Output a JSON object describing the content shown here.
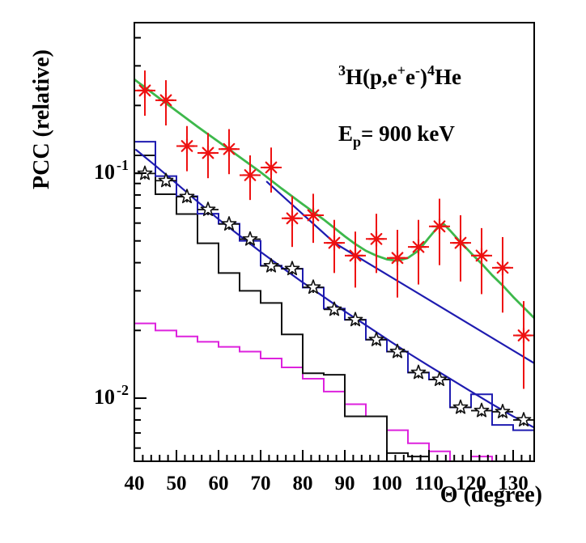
{
  "figure": {
    "y_axis_title": "PCC (relative)",
    "x_axis_title": "Θ (degree)",
    "y_tick_labels": [
      {
        "base": "10",
        "exp": "-1",
        "value": 0.1
      },
      {
        "base": "10",
        "exp": "-2",
        "value": 0.01
      }
    ],
    "x_tick_labels": [
      "40",
      "50",
      "60",
      "70",
      "80",
      "90",
      "100",
      "110",
      "120",
      "130"
    ],
    "reaction_parts": [
      {
        "t": "3",
        "style": "sup"
      },
      {
        "t": "H(p,e"
      },
      {
        "t": "+",
        "style": "sup"
      },
      {
        "t": "e"
      },
      {
        "t": "-",
        "style": "sup"
      },
      {
        "t": ")"
      },
      {
        "t": "4",
        "style": "sup"
      },
      {
        "t": "He"
      }
    ],
    "energy_parts": [
      {
        "t": "E"
      },
      {
        "t": "p",
        "style": "sub"
      },
      {
        "t": "= 900 keV"
      }
    ]
  },
  "chart_data": {
    "type": "line",
    "title": "3H(p,e+e-)4He angular correlation",
    "annotations": [
      "3H(p,e+e-)4He",
      "Ep = 900 keV"
    ],
    "xlabel": "Θ (degree)",
    "ylabel": "PCC (relative)",
    "x_axis": {
      "range": [
        40,
        135
      ],
      "major_ticks": [
        40,
        50,
        60,
        70,
        80,
        90,
        100,
        110,
        120,
        130
      ],
      "minor_tick_step": 2
    },
    "y_axis": {
      "scale": "log",
      "range": [
        0.0052,
        0.467
      ],
      "major_ticks": [
        0.1,
        0.01
      ],
      "minor_ticks": [
        0.4,
        0.3,
        0.2,
        0.09,
        0.08,
        0.07,
        0.06,
        0.05,
        0.04,
        0.03,
        0.02,
        0.009,
        0.008,
        0.007,
        0.006
      ]
    },
    "grid": false,
    "legend": "none",
    "colors": {
      "data": "#ee1111",
      "fit": "#3db84b",
      "theory": "#1e1bb0",
      "histogram_blue": "#1e1bb0",
      "histogram_black": "#111111",
      "histogram_magenta": "#dd22dd"
    },
    "series": [
      {
        "name": "experimental-data",
        "type": "scatter",
        "marker": "asterisk",
        "color": "#ee1111",
        "xerr_deg": 2.5,
        "x": [
          42.5,
          47.5,
          52.5,
          57.5,
          62.5,
          67.5,
          72.5,
          77.5,
          82.5,
          87.5,
          92.5,
          97.5,
          102.5,
          107.5,
          112.5,
          117.5,
          122.5,
          127.5,
          132.5
        ],
        "y": [
          0.233,
          0.211,
          0.132,
          0.123,
          0.128,
          0.098,
          0.106,
          0.063,
          0.065,
          0.049,
          0.043,
          0.051,
          0.042,
          0.047,
          0.058,
          0.049,
          0.043,
          0.038,
          0.019
        ],
        "yerr": [
          0.053,
          0.048,
          0.03,
          0.028,
          0.029,
          0.022,
          0.024,
          0.016,
          0.016,
          0.013,
          0.012,
          0.015,
          0.014,
          0.015,
          0.019,
          0.016,
          0.014,
          0.014,
          0.008
        ]
      },
      {
        "name": "fit-curve-with-bump",
        "type": "line",
        "color": "#3db84b",
        "points": [
          [
            40,
            0.261
          ],
          [
            45,
            0.222
          ],
          [
            50,
            0.189
          ],
          [
            55,
            0.161
          ],
          [
            60,
            0.138
          ],
          [
            65,
            0.118
          ],
          [
            70,
            0.101
          ],
          [
            75,
            0.0854
          ],
          [
            80,
            0.0728
          ],
          [
            85,
            0.0622
          ],
          [
            87.5,
            0.0571
          ],
          [
            90,
            0.0524
          ],
          [
            92.5,
            0.0484
          ],
          [
            95,
            0.0452
          ],
          [
            97.5,
            0.043
          ],
          [
            100,
            0.0414
          ],
          [
            102.5,
            0.0408
          ],
          [
            105,
            0.042
          ],
          [
            107.5,
            0.0453
          ],
          [
            110,
            0.0517
          ],
          [
            112.5,
            0.0588
          ],
          [
            113.5,
            0.0594
          ],
          [
            115,
            0.0556
          ],
          [
            117.5,
            0.0494
          ],
          [
            120,
            0.0441
          ],
          [
            122.5,
            0.0396
          ],
          [
            125,
            0.0352
          ],
          [
            127.5,
            0.0317
          ],
          [
            130,
            0.0282
          ],
          [
            132.5,
            0.0253
          ],
          [
            135,
            0.0227
          ]
        ]
      },
      {
        "name": "e1-direct-line",
        "type": "line",
        "color": "#1e1bb0",
        "points": [
          [
            71.5,
            0.0915
          ],
          [
            87.6,
            0.0489
          ],
          [
            135,
            0.0143
          ]
        ]
      },
      {
        "name": "e0-fit-line",
        "type": "line",
        "color": "#1e1bb0",
        "points": [
          [
            40.4,
            0.127
          ],
          [
            45,
            0.108
          ],
          [
            50,
            0.09
          ],
          [
            55,
            0.0748
          ],
          [
            60,
            0.0624
          ],
          [
            65,
            0.0528
          ],
          [
            70,
            0.0447
          ],
          [
            75,
            0.0382
          ],
          [
            80,
            0.0327
          ],
          [
            85,
            0.0282
          ],
          [
            90,
            0.0243
          ],
          [
            95,
            0.0211
          ],
          [
            100,
            0.0183
          ],
          [
            105,
            0.0159
          ],
          [
            110,
            0.0139
          ],
          [
            115,
            0.0122
          ],
          [
            120,
            0.0107
          ],
          [
            125,
            0.0094
          ],
          [
            130,
            0.0083
          ],
          [
            135,
            0.0074
          ]
        ]
      },
      {
        "name": "simulation-stars",
        "type": "scatter",
        "marker": "open-star",
        "color": "#111111",
        "xerr_deg": 2.5,
        "x": [
          42.5,
          47.5,
          52.5,
          57.5,
          62.5,
          67.5,
          72.5,
          77.5,
          82.5,
          87.5,
          92.5,
          97.5,
          102.5,
          107.5,
          112.5,
          117.5,
          122.5,
          127.5,
          132.5
        ],
        "y": [
          0.0997,
          0.0926,
          0.0786,
          0.0689,
          0.0594,
          0.0509,
          0.0387,
          0.0376,
          0.0311,
          0.0248,
          0.0223,
          0.0182,
          0.0161,
          0.013,
          0.0121,
          0.0091,
          0.0088,
          0.0087,
          0.008
        ]
      },
      {
        "name": "blue-histogram",
        "type": "histogram",
        "color": "#1e1bb0",
        "bin_start": 40,
        "bin_width": 5,
        "values": [
          0.138,
          0.097,
          0.079,
          0.066,
          0.0596,
          0.05,
          0.0388,
          0.0376,
          0.031,
          0.025,
          0.0223,
          0.0182,
          0.0161,
          0.013,
          0.0121,
          0.0091,
          0.0104,
          0.0076,
          0.0072
        ]
      },
      {
        "name": "black-histogram",
        "type": "histogram",
        "color": "#111111",
        "bin_start": 40,
        "bin_width": 5,
        "values": [
          0.12,
          0.0806,
          0.0658,
          0.0488,
          0.036,
          0.03,
          0.0265,
          0.0192,
          0.0129,
          0.0127,
          0.0083,
          0.0083,
          0.0057,
          0.0055,
          0.004
        ]
      },
      {
        "name": "magenta-histogram",
        "type": "histogram",
        "color": "#dd22dd",
        "bin_start": 40,
        "bin_width": 5,
        "values": [
          0.0215,
          0.02,
          0.0188,
          0.0178,
          0.0169,
          0.0161,
          0.015,
          0.0137,
          0.0122,
          0.0107,
          0.0094,
          0.0083,
          0.0072,
          0.0063,
          0.0058,
          0.0046,
          0.0055,
          0.004
        ]
      }
    ]
  }
}
